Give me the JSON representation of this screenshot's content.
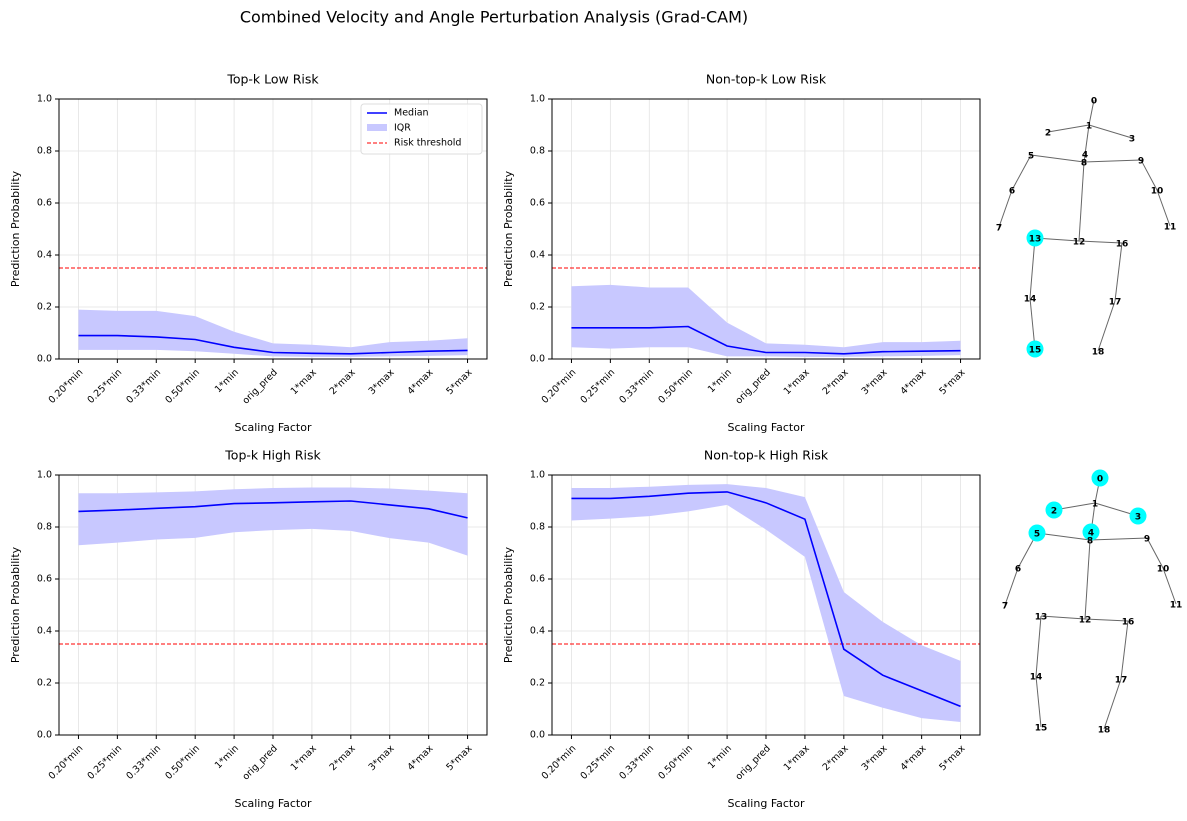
{
  "title": "Combined Velocity and Angle Perturbation Analysis (Grad-CAM)",
  "chart_data": [
    {
      "type": "line",
      "title": "Top-k Low Risk",
      "xlabel": "Scaling Factor",
      "ylabel": "Prediction Probability",
      "categories": [
        "0.20*min",
        "0.25*min",
        "0.33*min",
        "0.50*min",
        "1*min",
        "orig_pred",
        "1*max",
        "2*max",
        "3*max",
        "4*max",
        "5*max"
      ],
      "ylim": [
        0,
        1
      ],
      "yticks": [
        {
          "value": 0,
          "label": "0.0"
        },
        {
          "value": 0.2,
          "label": "0.2"
        },
        {
          "value": 0.4,
          "label": "0.4"
        },
        {
          "value": 0.6,
          "label": "0.6"
        },
        {
          "value": 0.8,
          "label": "0.8"
        },
        {
          "value": 1,
          "label": "1.0"
        }
      ],
      "grid": true,
      "legend": "upper right",
      "series": [
        {
          "name": "Median",
          "color": "#0000ff",
          "values": [
            0.09,
            0.09,
            0.085,
            0.075,
            0.045,
            0.025,
            0.022,
            0.02,
            0.025,
            0.03,
            0.033
          ]
        },
        {
          "name": "IQR",
          "color": "#c8c8ff",
          "low": [
            0.035,
            0.035,
            0.035,
            0.03,
            0.02,
            0.01,
            0.008,
            0.008,
            0.01,
            0.012,
            0.015
          ],
          "high": [
            0.19,
            0.185,
            0.185,
            0.165,
            0.105,
            0.06,
            0.055,
            0.045,
            0.065,
            0.07,
            0.08
          ]
        }
      ],
      "threshold": {
        "name": "Risk threshold",
        "value": 0.35,
        "color": "#ff0000"
      }
    },
    {
      "type": "line",
      "title": "Non-top-k Low Risk",
      "xlabel": "Scaling Factor",
      "ylabel": "Prediction Probability",
      "categories": [
        "0.20*min",
        "0.25*min",
        "0.33*min",
        "0.50*min",
        "1*min",
        "orig_pred",
        "1*max",
        "2*max",
        "3*max",
        "4*max",
        "5*max"
      ],
      "ylim": [
        0,
        1
      ],
      "yticks": [
        {
          "value": 0,
          "label": "0.0"
        },
        {
          "value": 0.2,
          "label": "0.2"
        },
        {
          "value": 0.4,
          "label": "0.4"
        },
        {
          "value": 0.6,
          "label": "0.6"
        },
        {
          "value": 0.8,
          "label": "0.8"
        },
        {
          "value": 1,
          "label": "1.0"
        }
      ],
      "grid": true,
      "series": [
        {
          "color": "#0000ff",
          "values": [
            0.12,
            0.12,
            0.12,
            0.125,
            0.05,
            0.025,
            0.025,
            0.02,
            0.028,
            0.03,
            0.032
          ]
        },
        {
          "color": "#c8c8ff",
          "low": [
            0.045,
            0.04,
            0.045,
            0.045,
            0.01,
            0.01,
            0.008,
            0.008,
            0.01,
            0.012,
            0.015
          ],
          "high": [
            0.28,
            0.285,
            0.275,
            0.275,
            0.14,
            0.06,
            0.055,
            0.045,
            0.065,
            0.065,
            0.07
          ]
        }
      ],
      "threshold": {
        "value": 0.35,
        "color": "#ff0000"
      }
    },
    {
      "type": "line",
      "title": "Top-k High Risk",
      "xlabel": "Scaling Factor",
      "ylabel": "Prediction Probability",
      "categories": [
        "0.20*min",
        "0.25*min",
        "0.33*min",
        "0.50*min",
        "1*min",
        "orig_pred",
        "1*max",
        "2*max",
        "3*max",
        "4*max",
        "5*max"
      ],
      "ylim": [
        0,
        1
      ],
      "yticks": [
        {
          "value": 0,
          "label": "0.0"
        },
        {
          "value": 0.2,
          "label": "0.2"
        },
        {
          "value": 0.4,
          "label": "0.4"
        },
        {
          "value": 0.6,
          "label": "0.6"
        },
        {
          "value": 0.8,
          "label": "0.8"
        },
        {
          "value": 1,
          "label": "1.0"
        }
      ],
      "grid": true,
      "series": [
        {
          "color": "#0000ff",
          "values": [
            0.86,
            0.865,
            0.872,
            0.878,
            0.89,
            0.893,
            0.897,
            0.9,
            0.885,
            0.87,
            0.835
          ]
        },
        {
          "color": "#c8c8ff",
          "low": [
            0.73,
            0.74,
            0.752,
            0.758,
            0.78,
            0.788,
            0.793,
            0.785,
            0.757,
            0.74,
            0.69
          ],
          "high": [
            0.93,
            0.93,
            0.933,
            0.937,
            0.945,
            0.95,
            0.952,
            0.952,
            0.948,
            0.94,
            0.93
          ]
        }
      ],
      "threshold": {
        "value": 0.35,
        "color": "#ff0000"
      }
    },
    {
      "type": "line",
      "title": "Non-top-k High Risk",
      "xlabel": "Scaling Factor",
      "ylabel": "Prediction Probability",
      "categories": [
        "0.20*min",
        "0.25*min",
        "0.33*min",
        "0.50*min",
        "1*min",
        "orig_pred",
        "1*max",
        "2*max",
        "3*max",
        "4*max",
        "5*max"
      ],
      "ylim": [
        0,
        1
      ],
      "yticks": [
        {
          "value": 0,
          "label": "0.0"
        },
        {
          "value": 0.2,
          "label": "0.2"
        },
        {
          "value": 0.4,
          "label": "0.4"
        },
        {
          "value": 0.6,
          "label": "0.6"
        },
        {
          "value": 0.8,
          "label": "0.8"
        },
        {
          "value": 1,
          "label": "1.0"
        }
      ],
      "grid": true,
      "series": [
        {
          "color": "#0000ff",
          "values": [
            0.91,
            0.91,
            0.918,
            0.93,
            0.935,
            0.893,
            0.83,
            0.33,
            0.23,
            0.17,
            0.11
          ]
        },
        {
          "color": "#c8c8ff",
          "low": [
            0.825,
            0.832,
            0.842,
            0.86,
            0.885,
            0.79,
            0.685,
            0.15,
            0.105,
            0.065,
            0.05
          ],
          "high": [
            0.95,
            0.95,
            0.955,
            0.962,
            0.965,
            0.95,
            0.915,
            0.55,
            0.435,
            0.345,
            0.285
          ]
        }
      ],
      "threshold": {
        "value": 0.35,
        "color": "#ff0000"
      }
    }
  ],
  "skeletons": [
    {
      "highlight_color": "#00ffff",
      "nodes": [
        {
          "label": "0",
          "highlighted": false
        },
        {
          "label": "1",
          "highlighted": false
        },
        {
          "label": "2",
          "highlighted": false
        },
        {
          "label": "3",
          "highlighted": false
        },
        {
          "label": "4",
          "highlighted": false
        },
        {
          "label": "5",
          "highlighted": false
        },
        {
          "label": "6",
          "highlighted": false
        },
        {
          "label": "7",
          "highlighted": false
        },
        {
          "label": "8",
          "highlighted": false
        },
        {
          "label": "9",
          "highlighted": false
        },
        {
          "label": "10",
          "highlighted": false
        },
        {
          "label": "11",
          "highlighted": false
        },
        {
          "label": "12",
          "highlighted": false
        },
        {
          "label": "13",
          "highlighted": true
        },
        {
          "label": "14",
          "highlighted": false
        },
        {
          "label": "15",
          "highlighted": true
        },
        {
          "label": "16",
          "highlighted": false
        },
        {
          "label": "17",
          "highlighted": false
        },
        {
          "label": "18",
          "highlighted": false
        }
      ]
    },
    {
      "highlight_color": "#00ffff",
      "nodes": [
        {
          "label": "0",
          "highlighted": true
        },
        {
          "label": "1",
          "highlighted": false
        },
        {
          "label": "2",
          "highlighted": true
        },
        {
          "label": "3",
          "highlighted": true
        },
        {
          "label": "4",
          "highlighted": true
        },
        {
          "label": "5",
          "highlighted": true
        },
        {
          "label": "6",
          "highlighted": false
        },
        {
          "label": "7",
          "highlighted": false
        },
        {
          "label": "8",
          "highlighted": false
        },
        {
          "label": "9",
          "highlighted": false
        },
        {
          "label": "10",
          "highlighted": false
        },
        {
          "label": "11",
          "highlighted": false
        },
        {
          "label": "12",
          "highlighted": false
        },
        {
          "label": "13",
          "highlighted": false
        },
        {
          "label": "14",
          "highlighted": false
        },
        {
          "label": "15",
          "highlighted": false
        },
        {
          "label": "16",
          "highlighted": false
        },
        {
          "label": "17",
          "highlighted": false
        },
        {
          "label": "18",
          "highlighted": false
        }
      ]
    }
  ]
}
